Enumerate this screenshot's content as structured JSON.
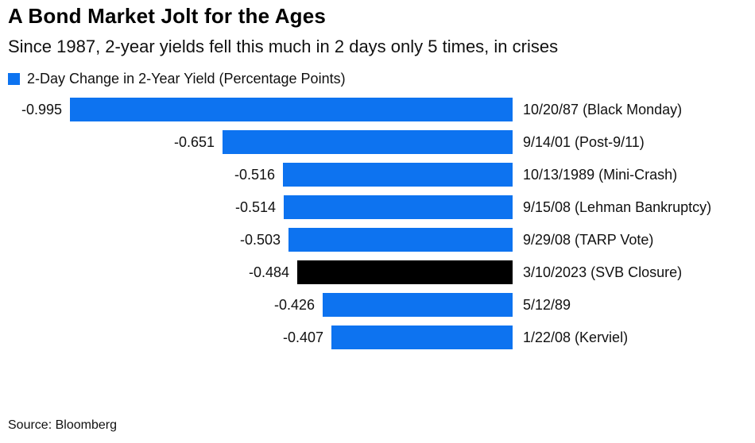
{
  "header": {
    "title": "A Bond Market Jolt for the Ages",
    "subtitle": "Since 1987, 2-year yields fell this much in 2 days only 5 times, in crises"
  },
  "legend": {
    "label": "2-Day Change in 2-Year Yield (Percentage Points)",
    "swatch_color": "#0d73f0"
  },
  "footer": {
    "source": "Source: Bloomberg"
  },
  "colors": {
    "bar_blue": "#0d73f0",
    "bar_highlight": "#000000",
    "text": "#111111"
  },
  "chart_data": {
    "type": "bar",
    "orientation": "horizontal",
    "title": "A Bond Market Jolt for the Ages",
    "subtitle": "Since 1987, 2-year yields fell this much in 2 days only 5 times, in crises",
    "legend_entries": [
      "2-Day Change in 2-Year Yield (Percentage Points)"
    ],
    "xlabel": "2-Day Change in 2-Year Yield (Percentage Points)",
    "xlim": [
      -1.0,
      0
    ],
    "grid": false,
    "categories": [
      "10/20/87 (Black Monday)",
      "9/14/01 (Post-9/11)",
      "10/13/1989 (Mini-Crash)",
      "9/15/08 (Lehman Bankruptcy)",
      "9/29/08 (TARP Vote)",
      "3/10/2023 (SVB Closure)",
      "5/12/89",
      "1/22/08 (Kerviel)"
    ],
    "values": [
      -0.995,
      -0.651,
      -0.516,
      -0.514,
      -0.503,
      -0.484,
      -0.426,
      -0.407
    ],
    "value_labels": [
      "-0.995",
      "-0.651",
      "-0.516",
      "-0.514",
      "-0.503",
      "-0.484",
      "-0.426",
      "-0.407"
    ],
    "highlight_index": 5,
    "source": "Source: Bloomberg"
  }
}
